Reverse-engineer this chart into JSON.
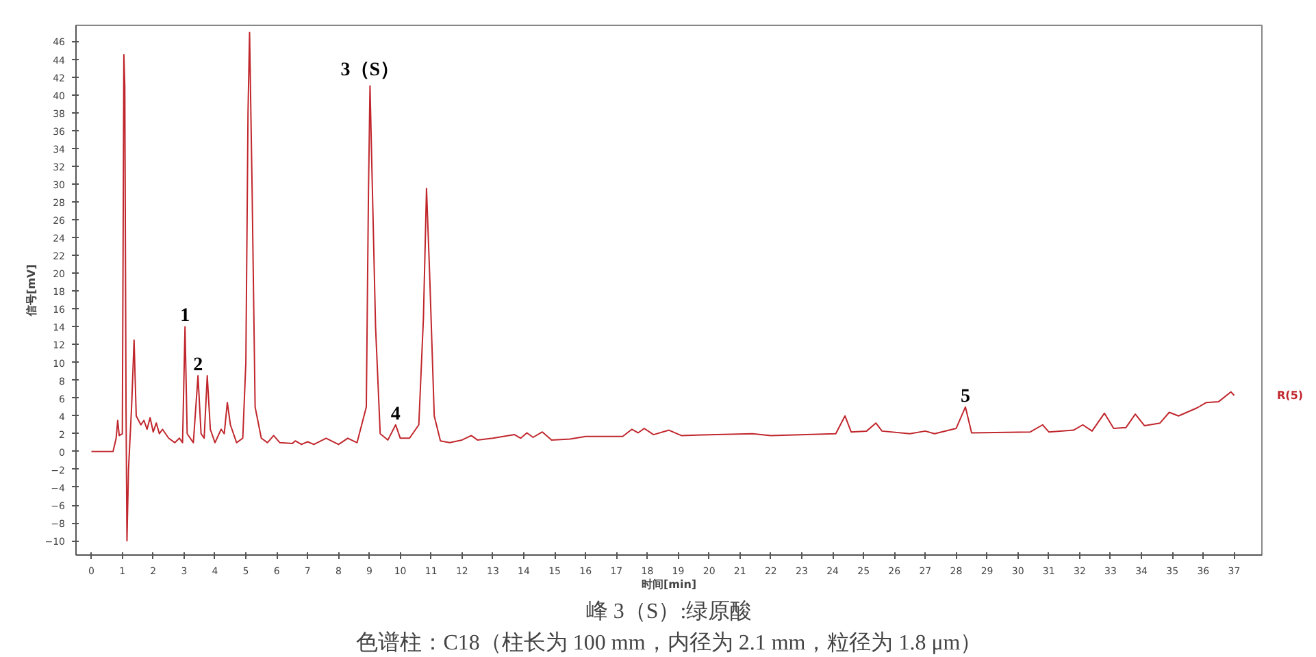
{
  "chart_data": {
    "type": "line",
    "xlabel": "时间[min]",
    "ylabel": "信号[mV]",
    "xlim": [
      -0.5,
      37.9
    ],
    "ylim": [
      -11.6,
      47.8
    ],
    "xticks": [
      0,
      1,
      2,
      3,
      4,
      5,
      6,
      7,
      8,
      9,
      10,
      11,
      12,
      13,
      14,
      15,
      16,
      17,
      18,
      19,
      20,
      21,
      22,
      23,
      24,
      25,
      26,
      27,
      28,
      29,
      30,
      31,
      32,
      33,
      34,
      35,
      36,
      37
    ],
    "yticks": [
      -10,
      -8,
      -6,
      -4,
      -2,
      0,
      2,
      4,
      6,
      8,
      10,
      12,
      14,
      16,
      18,
      20,
      22,
      24,
      26,
      28,
      30,
      32,
      34,
      36,
      38,
      40,
      42,
      44,
      46
    ],
    "grid": false,
    "marker": "none",
    "line_style": "solid",
    "series": [
      {
        "name": "R(5)",
        "color": "#c0272d",
        "x": [
          0,
          0.7,
          0.8,
          0.85,
          0.9,
          1.0,
          1.05,
          1.08,
          1.12,
          1.15,
          1.2,
          1.3,
          1.38,
          1.45,
          1.6,
          1.7,
          1.8,
          1.9,
          2.0,
          2.1,
          2.2,
          2.3,
          2.5,
          2.7,
          2.85,
          2.95,
          3.03,
          3.1,
          3.3,
          3.45,
          3.55,
          3.65,
          3.75,
          3.85,
          4.0,
          4.2,
          4.3,
          4.4,
          4.5,
          4.7,
          4.9,
          5.0,
          5.07,
          5.12,
          5.2,
          5.3,
          5.5,
          5.7,
          5.9,
          6.1,
          6.5,
          6.6,
          6.8,
          7.0,
          7.2,
          7.6,
          8.0,
          8.3,
          8.6,
          8.9,
          8.97,
          9.02,
          9.1,
          9.2,
          9.35,
          9.6,
          9.85,
          10.0,
          10.3,
          10.6,
          10.75,
          10.85,
          10.95,
          11.1,
          11.3,
          11.6,
          12.0,
          12.3,
          12.5,
          13.0,
          13.7,
          13.9,
          14.1,
          14.3,
          14.6,
          14.9,
          15.5,
          16.0,
          17.2,
          17.5,
          17.7,
          17.9,
          18.2,
          18.7,
          19.1,
          21.4,
          22.0,
          24.1,
          24.4,
          24.6,
          25.1,
          25.4,
          25.6,
          26.5,
          27.0,
          27.3,
          28.0,
          28.3,
          28.5,
          30.4,
          30.8,
          31.0,
          31.8,
          32.1,
          32.4,
          32.8,
          33.1,
          33.5,
          33.8,
          34.1,
          34.6,
          34.9,
          35.2,
          35.8,
          36.1,
          36.5,
          36.9,
          37.0
        ],
        "values": [
          0,
          0,
          1.5,
          3.5,
          1.8,
          2,
          44.5,
          41,
          5,
          -10,
          -2,
          5,
          12.5,
          4,
          3,
          3.5,
          2.5,
          3.8,
          2.2,
          3.2,
          2,
          2.5,
          1.5,
          1,
          1.5,
          1,
          14,
          2,
          1,
          8.5,
          2,
          1.5,
          8.5,
          2.5,
          1,
          2.5,
          2,
          5.5,
          3,
          1,
          1.5,
          10,
          38,
          47,
          30,
          5,
          1.5,
          1,
          1.8,
          1,
          0.9,
          1.2,
          0.8,
          1.1,
          0.8,
          1.5,
          0.8,
          1.5,
          1,
          5,
          29,
          41,
          29,
          14,
          2,
          1.3,
          3.0,
          1.5,
          1.5,
          3,
          15,
          29.5,
          20,
          4,
          1.2,
          1.0,
          1.3,
          1.8,
          1.3,
          1.5,
          1.9,
          1.5,
          2.1,
          1.6,
          2.2,
          1.3,
          1.4,
          1.7,
          1.7,
          2.5,
          2.1,
          2.6,
          1.9,
          2.4,
          1.8,
          2.0,
          1.8,
          2.0,
          4.0,
          2.2,
          2.3,
          3.2,
          2.3,
          2.0,
          2.3,
          2.0,
          2.6,
          5.0,
          2.1,
          2.2,
          3.0,
          2.2,
          2.4,
          3.0,
          2.3,
          4.3,
          2.6,
          2.7,
          4.2,
          2.9,
          3.2,
          4.4,
          4.0,
          4.9,
          5.5,
          5.6,
          6.7,
          6.3
        ]
      }
    ],
    "annotations": [
      {
        "text": "1",
        "x": 3.03,
        "y": 14
      },
      {
        "text": "2",
        "x": 3.45,
        "y": 8.5
      },
      {
        "text": "3（S）",
        "x": 9.02,
        "y": 41
      },
      {
        "text": "4",
        "x": 9.85,
        "y": 3.0
      },
      {
        "text": "5",
        "x": 28.3,
        "y": 5.0
      },
      "峰 3（S）:绿原酸",
      "色谱柱：C18（柱长为 100 mm，内径为 2.1 mm，粒径为 1.8 μm）"
    ]
  }
}
